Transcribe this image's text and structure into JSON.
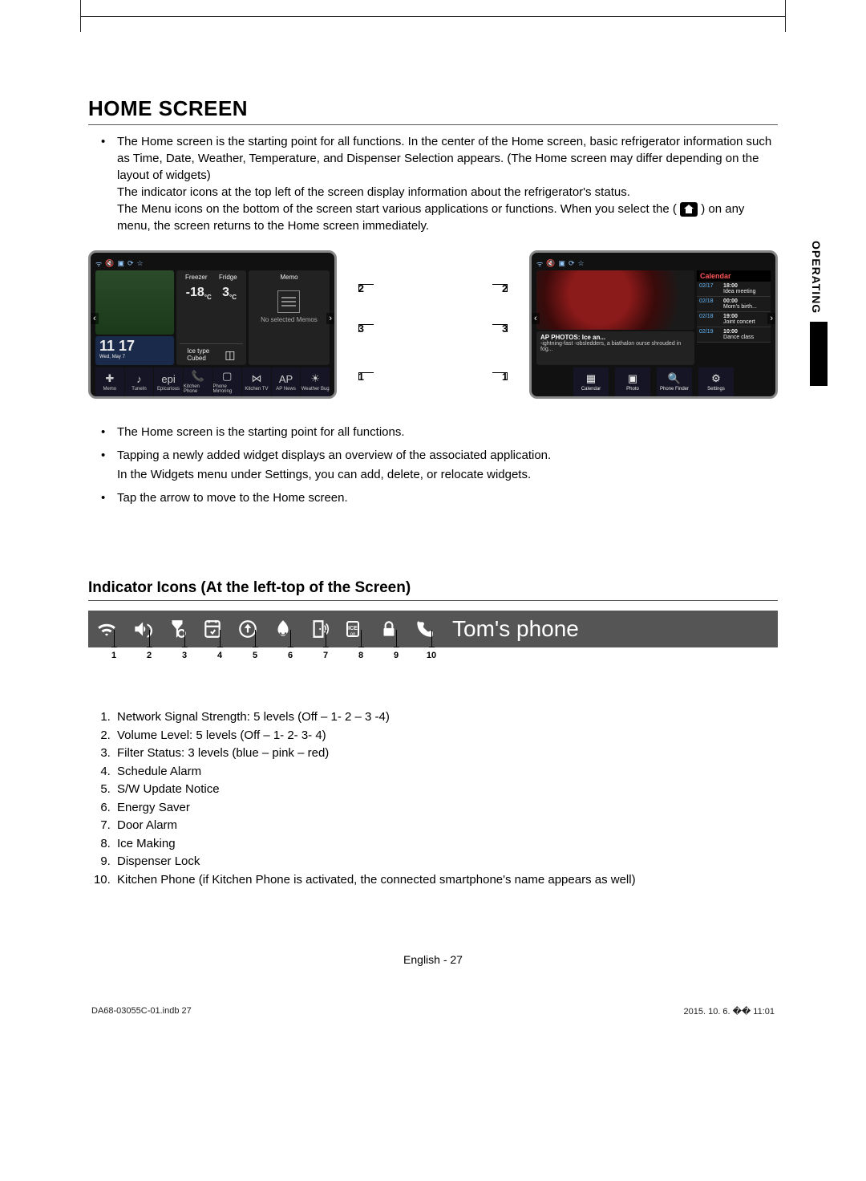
{
  "page": {
    "title": "HOME SCREEN",
    "sidebar_label": "OPERATING",
    "intro_text_a": "The Home screen is the starting point for all functions. In the center of the Home screen, basic refrigerator information such as Time, Date, Weather, Temperature, and Dispenser Selection appears. (The Home screen may differ depending on the layout of widgets)",
    "intro_text_b": "The indicator icons at the top left of the screen display information about the refrigerator's status.",
    "intro_text_c_pre": "The Menu icons on the bottom of the screen start various applications or functions. When you select the (",
    "intro_text_c_post": ") on any menu, the screen returns to the Home screen immediately.",
    "body_bullets": [
      "The Home screen is the starting point for all functions.",
      "Tapping a newly added widget displays an overview of the associated application.\nIn the Widgets menu under Settings, you can add, delete, or relocate widgets.",
      "Tap the arrow to move to the Home screen."
    ],
    "subtitle": "Indicator Icons (At the left-top of the Screen)",
    "footer_lang": "English - 27",
    "print_left": "DA68-03055C-01.indb   27",
    "print_right": "2015. 10. 6.   �� 11:01"
  },
  "screen1": {
    "freezer_label": "Freezer",
    "fridge_label": "Fridge",
    "freezer_temp": "-18",
    "fridge_temp": "3",
    "temp_unit": "°C",
    "clock": "11 17",
    "clock_sub": "Wed, May 7",
    "ice_label": "Ice type",
    "ice_value": "Cubed",
    "memo_title": "Memo",
    "memo_text": "No selected Memos",
    "menu": [
      "Memo",
      "TuneIn",
      "Epicurious",
      "Kitchen Phone",
      "Phone Mirroring",
      "Kitchen TV",
      "AP News",
      "Weather Bug"
    ],
    "menu_icons": [
      "✚",
      "♪",
      "epi",
      "📞",
      "▢",
      "⋈",
      "AP",
      "☀"
    ],
    "callouts": {
      "c1": "1",
      "c2": "2",
      "c3": "3"
    }
  },
  "screen2": {
    "news_title": "AP PHOTOS: Ice an...",
    "news_body": "-ightning-fast -obsledders, a biathalon ourse shrouded in fog...",
    "calendar_title": "Calendar",
    "calendar": [
      {
        "date": "02/17",
        "time": "18:00",
        "txt": "Idea meeting"
      },
      {
        "date": "02/18",
        "time": "00:00",
        "txt": "Mom's birth..."
      },
      {
        "date": "02/18",
        "time": "19:00",
        "txt": "Joint concert"
      },
      {
        "date": "02/19",
        "time": "10:00",
        "txt": "Dance class"
      }
    ],
    "menu": [
      "Calendar",
      "Photo",
      "Phone Finder",
      "Settings"
    ],
    "menu_icons": [
      "▦",
      "▣",
      "🔍",
      "⚙"
    ],
    "callouts": {
      "c1": "1",
      "c2": "2",
      "c3": "3"
    }
  },
  "indicator": {
    "phone_name": "Tom's phone",
    "numbers": [
      "1",
      "2",
      "3",
      "4",
      "5",
      "6",
      "7",
      "8",
      "9",
      "10"
    ],
    "list": [
      "Network Signal Strength: 5 levels (Off – 1- 2 – 3 -4)",
      "Volume Level: 5 levels (Off – 1- 2- 3- 4)",
      "Filter Status: 3 levels (blue – pink – red)",
      "Schedule Alarm",
      "S/W Update Notice",
      "Energy Saver",
      "Door Alarm",
      "Ice Making",
      "Dispenser Lock",
      "Kitchen Phone (if Kitchen Phone is activated, the connected smartphone's name appears as well)"
    ]
  },
  "colors": {
    "indicator_bg": "#555555",
    "icon_fg": "#ffffff",
    "page_fg": "#000000"
  }
}
